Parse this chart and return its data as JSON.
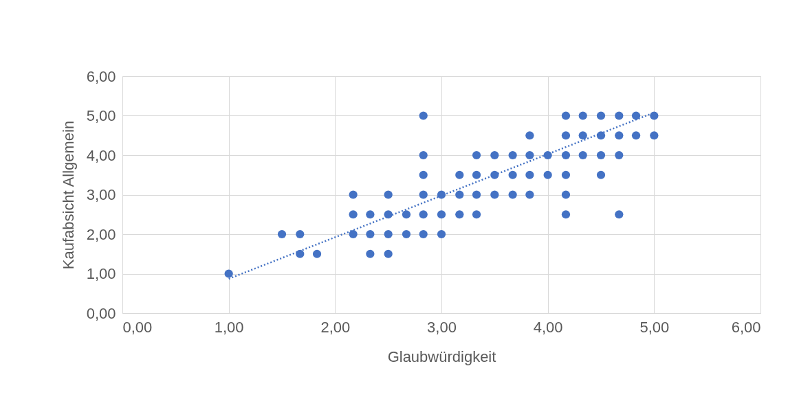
{
  "chart_data": {
    "type": "scatter",
    "xlabel": "Glaubwürdigkeit",
    "ylabel": "Kaufabsicht Allgemein",
    "grid": true,
    "marker": "circle",
    "xlim": [
      0,
      6
    ],
    "ylim": [
      0,
      6
    ],
    "xticks": [
      {
        "value": 0,
        "label": "0,00"
      },
      {
        "value": 1,
        "label": "1,00"
      },
      {
        "value": 2,
        "label": "2,00"
      },
      {
        "value": 3,
        "label": "3,00"
      },
      {
        "value": 4,
        "label": "4,00"
      },
      {
        "value": 5,
        "label": "5,00"
      },
      {
        "value": 6,
        "label": "6,00"
      }
    ],
    "yticks": [
      {
        "value": 0,
        "label": "0,00"
      },
      {
        "value": 1,
        "label": "1,00"
      },
      {
        "value": 2,
        "label": "2,00"
      },
      {
        "value": 3,
        "label": "3,00"
      },
      {
        "value": 4,
        "label": "4,00"
      },
      {
        "value": 5,
        "label": "5,00"
      },
      {
        "value": 6,
        "label": "6,00"
      }
    ],
    "series": [
      {
        "type": "scatter",
        "color": "#4472c4",
        "x": [
          1.0,
          1.5,
          1.67,
          1.67,
          1.83,
          2.17,
          2.17,
          2.17,
          2.33,
          2.33,
          2.33,
          2.5,
          2.5,
          2.5,
          2.5,
          2.67,
          2.67,
          2.83,
          2.83,
          2.83,
          2.83,
          2.83,
          2.83,
          3.0,
          3.0,
          3.0,
          3.17,
          3.17,
          3.17,
          3.33,
          3.33,
          3.33,
          3.33,
          3.5,
          3.5,
          3.5,
          3.67,
          3.67,
          3.67,
          3.83,
          3.83,
          3.83,
          3.83,
          4.0,
          4.0,
          4.17,
          4.17,
          4.17,
          4.17,
          4.17,
          4.17,
          4.33,
          4.33,
          4.33,
          4.5,
          4.5,
          4.5,
          4.5,
          4.67,
          4.67,
          4.67,
          4.67,
          4.83,
          4.83,
          5.0,
          5.0
        ],
        "values": [
          1.0,
          2.0,
          2.0,
          1.5,
          1.5,
          3.0,
          2.5,
          2.0,
          2.5,
          2.0,
          1.5,
          3.0,
          2.5,
          2.0,
          1.5,
          2.5,
          2.0,
          5.0,
          4.0,
          3.5,
          3.0,
          2.5,
          2.0,
          3.0,
          2.5,
          2.0,
          3.5,
          3.0,
          2.5,
          4.0,
          3.5,
          3.0,
          2.5,
          4.0,
          3.5,
          3.0,
          4.0,
          3.5,
          3.0,
          4.5,
          4.0,
          3.5,
          3.0,
          4.0,
          3.5,
          5.0,
          4.5,
          4.0,
          3.5,
          3.0,
          2.5,
          5.0,
          4.5,
          4.0,
          5.0,
          4.5,
          4.0,
          3.5,
          5.0,
          4.5,
          4.0,
          2.5,
          5.0,
          4.5,
          5.0,
          4.5
        ]
      },
      {
        "type": "line",
        "color": "#4472c4",
        "line_style": "dotted",
        "marker": "none",
        "x": [
          1.0,
          5.0
        ],
        "values": [
          0.87,
          5.08
        ]
      }
    ]
  }
}
